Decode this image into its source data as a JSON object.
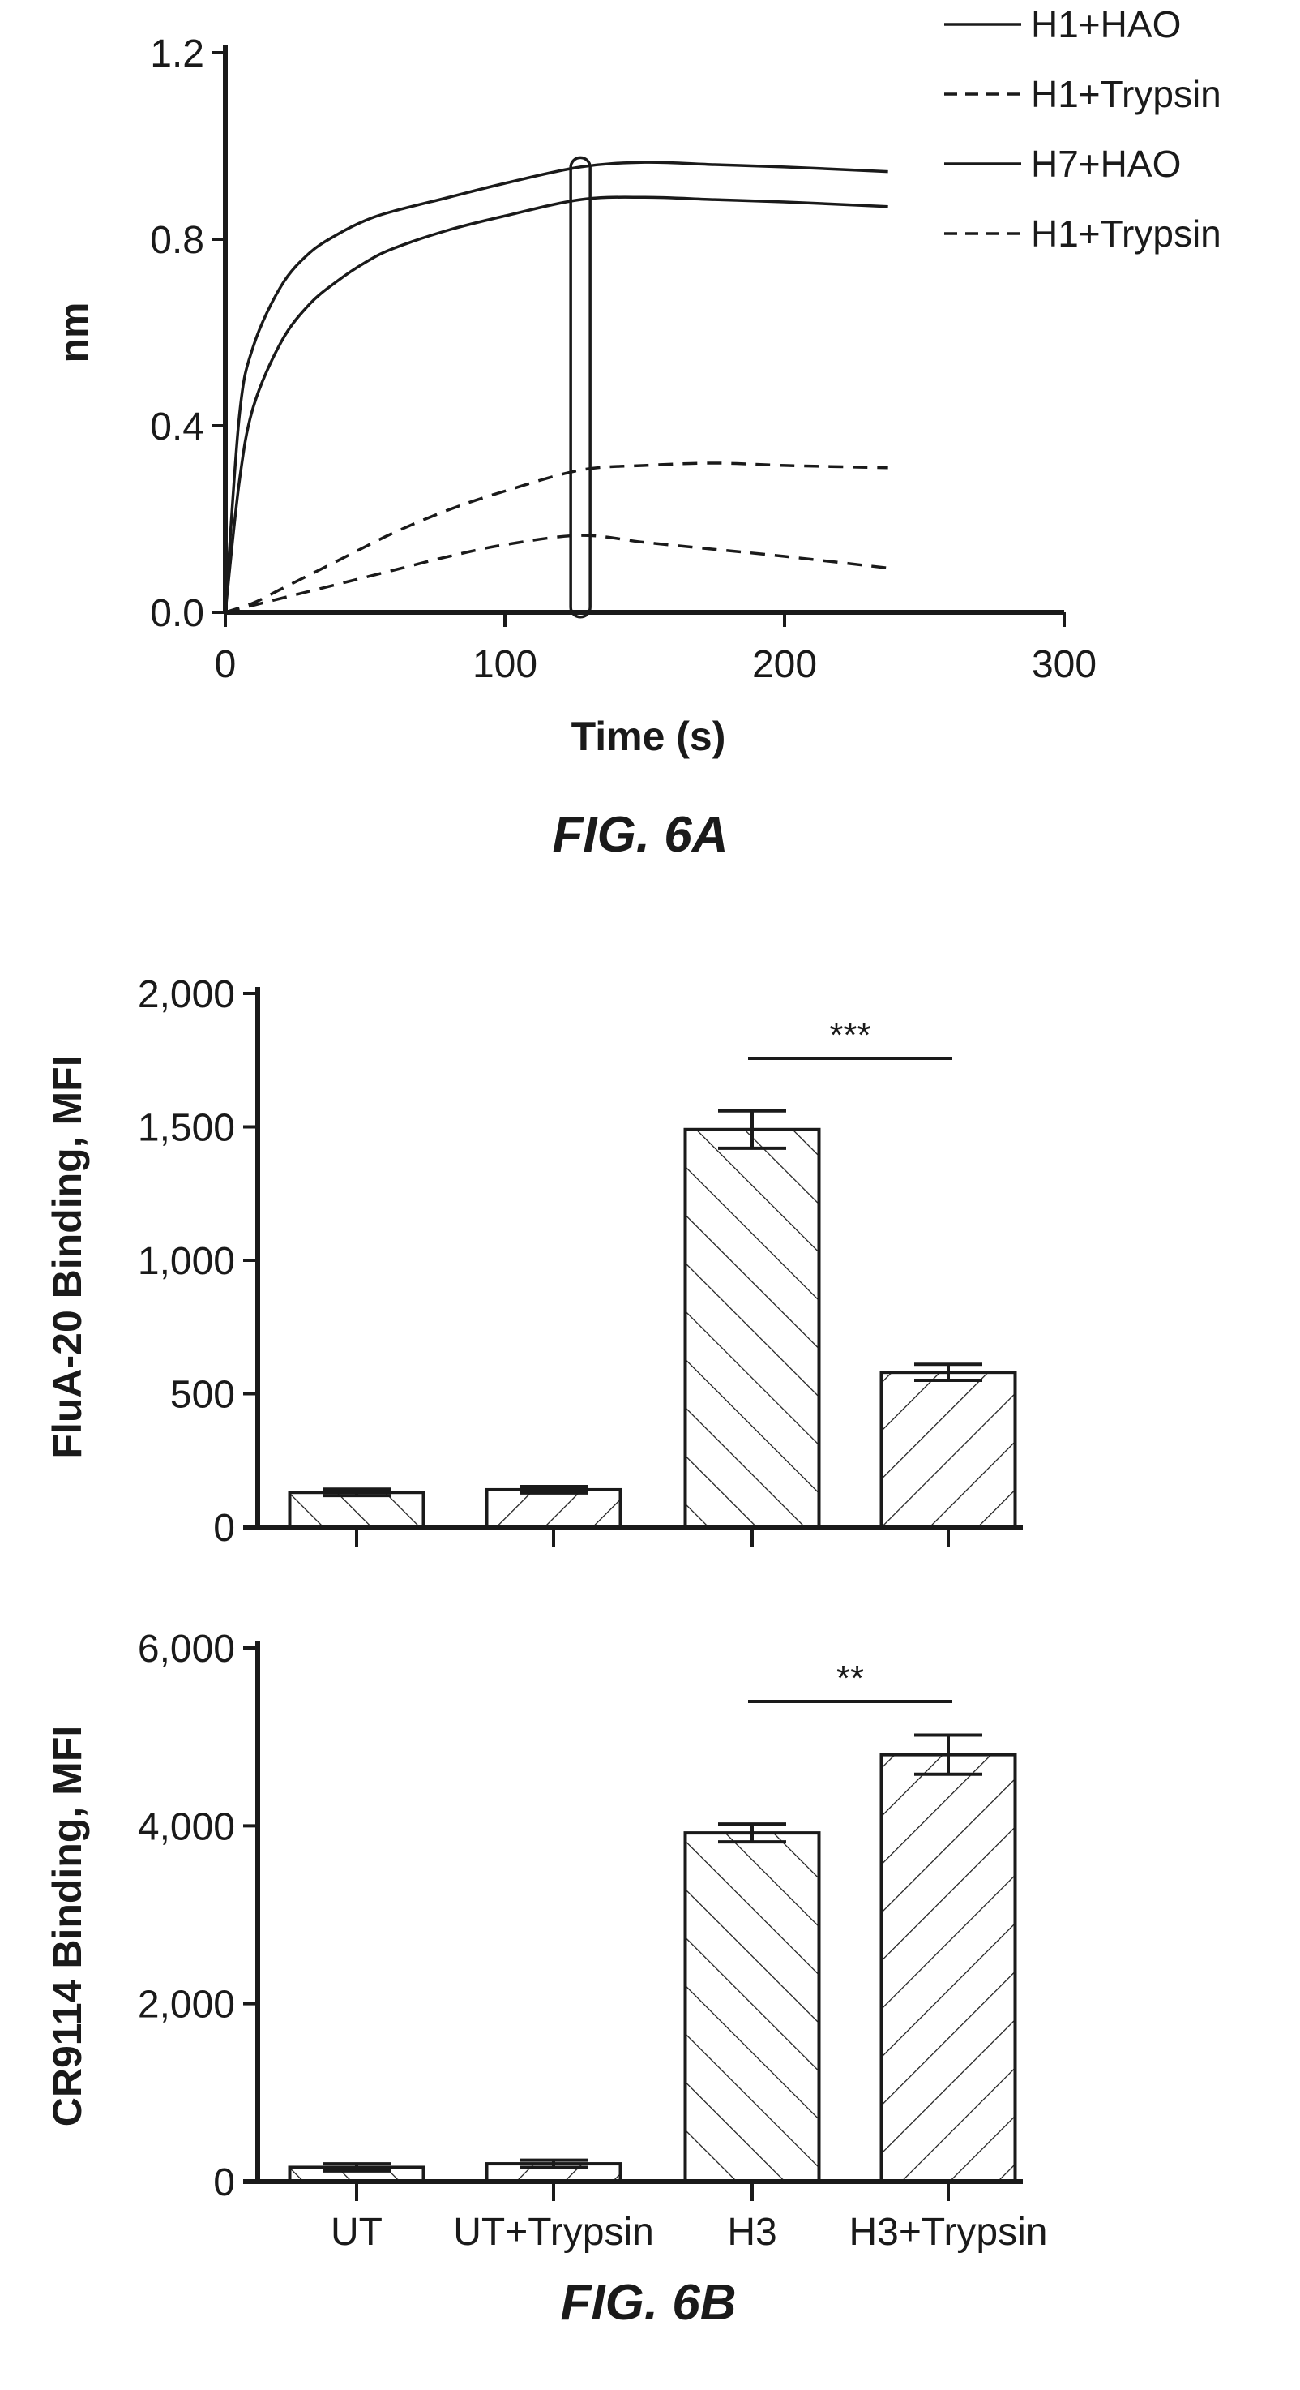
{
  "chart_data": [
    {
      "type": "line",
      "caption": "FIG. 6A",
      "xlabel": "Time (s)",
      "ylabel": "nm",
      "xlim": [
        0,
        300
      ],
      "ylim": [
        0,
        1.2
      ],
      "xticks": [
        {
          "value": 0,
          "label": "0"
        },
        {
          "value": 100,
          "label": "100"
        },
        {
          "value": 200,
          "label": "200"
        },
        {
          "value": 300,
          "label": "300"
        }
      ],
      "yticks": [
        {
          "value": 0,
          "label": "0.0"
        },
        {
          "value": 0.4,
          "label": "0.4"
        },
        {
          "value": 0.8,
          "label": "0.8"
        },
        {
          "value": 1.2,
          "label": "1.2"
        }
      ],
      "legend_position": "top-right",
      "highlight_x": 127,
      "series": [
        {
          "name": "H1+HAO",
          "style": "solid",
          "x": [
            0,
            5,
            10,
            20,
            30,
            40,
            50,
            60,
            80,
            100,
            127,
            150,
            175,
            200,
            237
          ],
          "y": [
            0.0,
            0.42,
            0.57,
            0.7,
            0.77,
            0.81,
            0.84,
            0.86,
            0.89,
            0.92,
            0.955,
            0.965,
            0.96,
            0.955,
            0.945
          ]
        },
        {
          "name": "H1+Trypsin",
          "style": "dashed",
          "x": [
            0,
            10,
            20,
            40,
            60,
            80,
            100,
            127,
            150,
            175,
            200,
            237
          ],
          "y": [
            0.0,
            0.02,
            0.05,
            0.11,
            0.17,
            0.22,
            0.26,
            0.305,
            0.315,
            0.32,
            0.315,
            0.31
          ]
        },
        {
          "name": "H7+HAO",
          "style": "solid",
          "x": [
            0,
            5,
            10,
            20,
            30,
            40,
            50,
            60,
            80,
            100,
            127,
            150,
            175,
            200,
            237
          ],
          "y": [
            0.0,
            0.28,
            0.44,
            0.58,
            0.66,
            0.71,
            0.75,
            0.78,
            0.82,
            0.85,
            0.885,
            0.89,
            0.885,
            0.88,
            0.87
          ]
        },
        {
          "name": "H1+Trypsin",
          "style": "dashed",
          "x": [
            0,
            10,
            20,
            40,
            60,
            80,
            100,
            127,
            150,
            175,
            200,
            237
          ],
          "y": [
            0.0,
            0.015,
            0.03,
            0.06,
            0.09,
            0.12,
            0.145,
            0.165,
            0.15,
            0.135,
            0.12,
            0.095
          ]
        }
      ]
    },
    {
      "type": "bar",
      "ylabel": "FluA-20 Binding, MFI",
      "ylim": [
        0,
        2000
      ],
      "yticks": [
        {
          "value": 0,
          "label": "0"
        },
        {
          "value": 500,
          "label": "500"
        },
        {
          "value": 1000,
          "label": "1,000"
        },
        {
          "value": 1500,
          "label": "1,500"
        },
        {
          "value": 2000,
          "label": "2,000"
        }
      ],
      "categories": [
        "UT",
        "UT+Trypsin",
        "H3",
        "H3+Trypsin"
      ],
      "values": [
        130,
        140,
        1490,
        580
      ],
      "errors": [
        12,
        12,
        70,
        30
      ],
      "hatch": [
        "forward",
        "backward",
        "forward",
        "backward"
      ],
      "significance": {
        "from": 2,
        "to": 3,
        "label": "***"
      }
    },
    {
      "type": "bar",
      "caption": "FIG. 6B",
      "ylabel": "CR9114 Binding, MFI",
      "ylim": [
        0,
        6000
      ],
      "yticks": [
        {
          "value": 0,
          "label": "0"
        },
        {
          "value": 2000,
          "label": "2,000"
        },
        {
          "value": 4000,
          "label": "4,000"
        },
        {
          "value": 6000,
          "label": "6,000"
        }
      ],
      "categories": [
        "UT",
        "UT+Trypsin",
        "H3",
        "H3+Trypsin"
      ],
      "values": [
        160,
        200,
        3920,
        4800
      ],
      "errors": [
        40,
        40,
        100,
        220
      ],
      "hatch": [
        "forward",
        "backward",
        "forward",
        "backward"
      ],
      "significance": {
        "from": 2,
        "to": 3,
        "label": "**"
      }
    }
  ]
}
